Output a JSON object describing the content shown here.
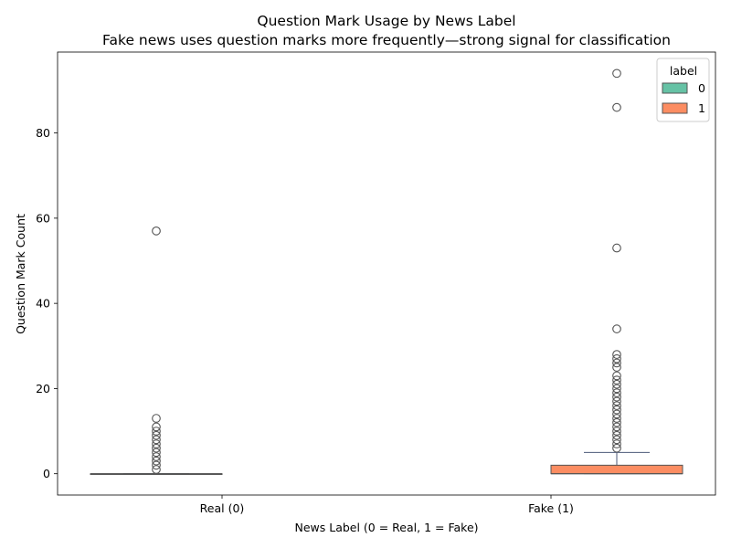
{
  "chart_data": {
    "type": "box",
    "title": "Question Mark Usage by News Label",
    "subtitle": "Fake news uses question marks more frequently—strong signal for classification",
    "xlabel": "News Label (0 = Real, 1 = Fake)",
    "ylabel": "Question Mark Count",
    "ylim": [
      -5,
      99
    ],
    "yticks": [
      0,
      20,
      40,
      60,
      80
    ],
    "grid": false,
    "categories": [
      "Real (0)",
      "Fake (1)"
    ],
    "legend": {
      "title": "label",
      "placement": "top-right",
      "entries": [
        {
          "label": "0",
          "color": "#66c2a5"
        },
        {
          "label": "1",
          "color": "#fc8d62"
        }
      ]
    },
    "series": [
      {
        "name": "0",
        "color": "#66c2a5",
        "category": "Real (0)",
        "min": 0,
        "q1": 0,
        "median": 0,
        "q3": 0,
        "max": 0,
        "outliers": [
          1,
          2,
          3,
          4,
          5,
          6,
          7,
          8,
          9,
          10,
          11,
          13,
          57
        ]
      },
      {
        "name": "1",
        "color": "#fc8d62",
        "category": "Fake (1)",
        "min": 0,
        "q1": 0,
        "median": 0,
        "q3": 2,
        "max": 5,
        "outliers": [
          6,
          7,
          8,
          9,
          10,
          11,
          12,
          13,
          14,
          15,
          16,
          17,
          18,
          19,
          20,
          21,
          22,
          23,
          25,
          26,
          27,
          28,
          34,
          53,
          86,
          94
        ]
      }
    ]
  }
}
